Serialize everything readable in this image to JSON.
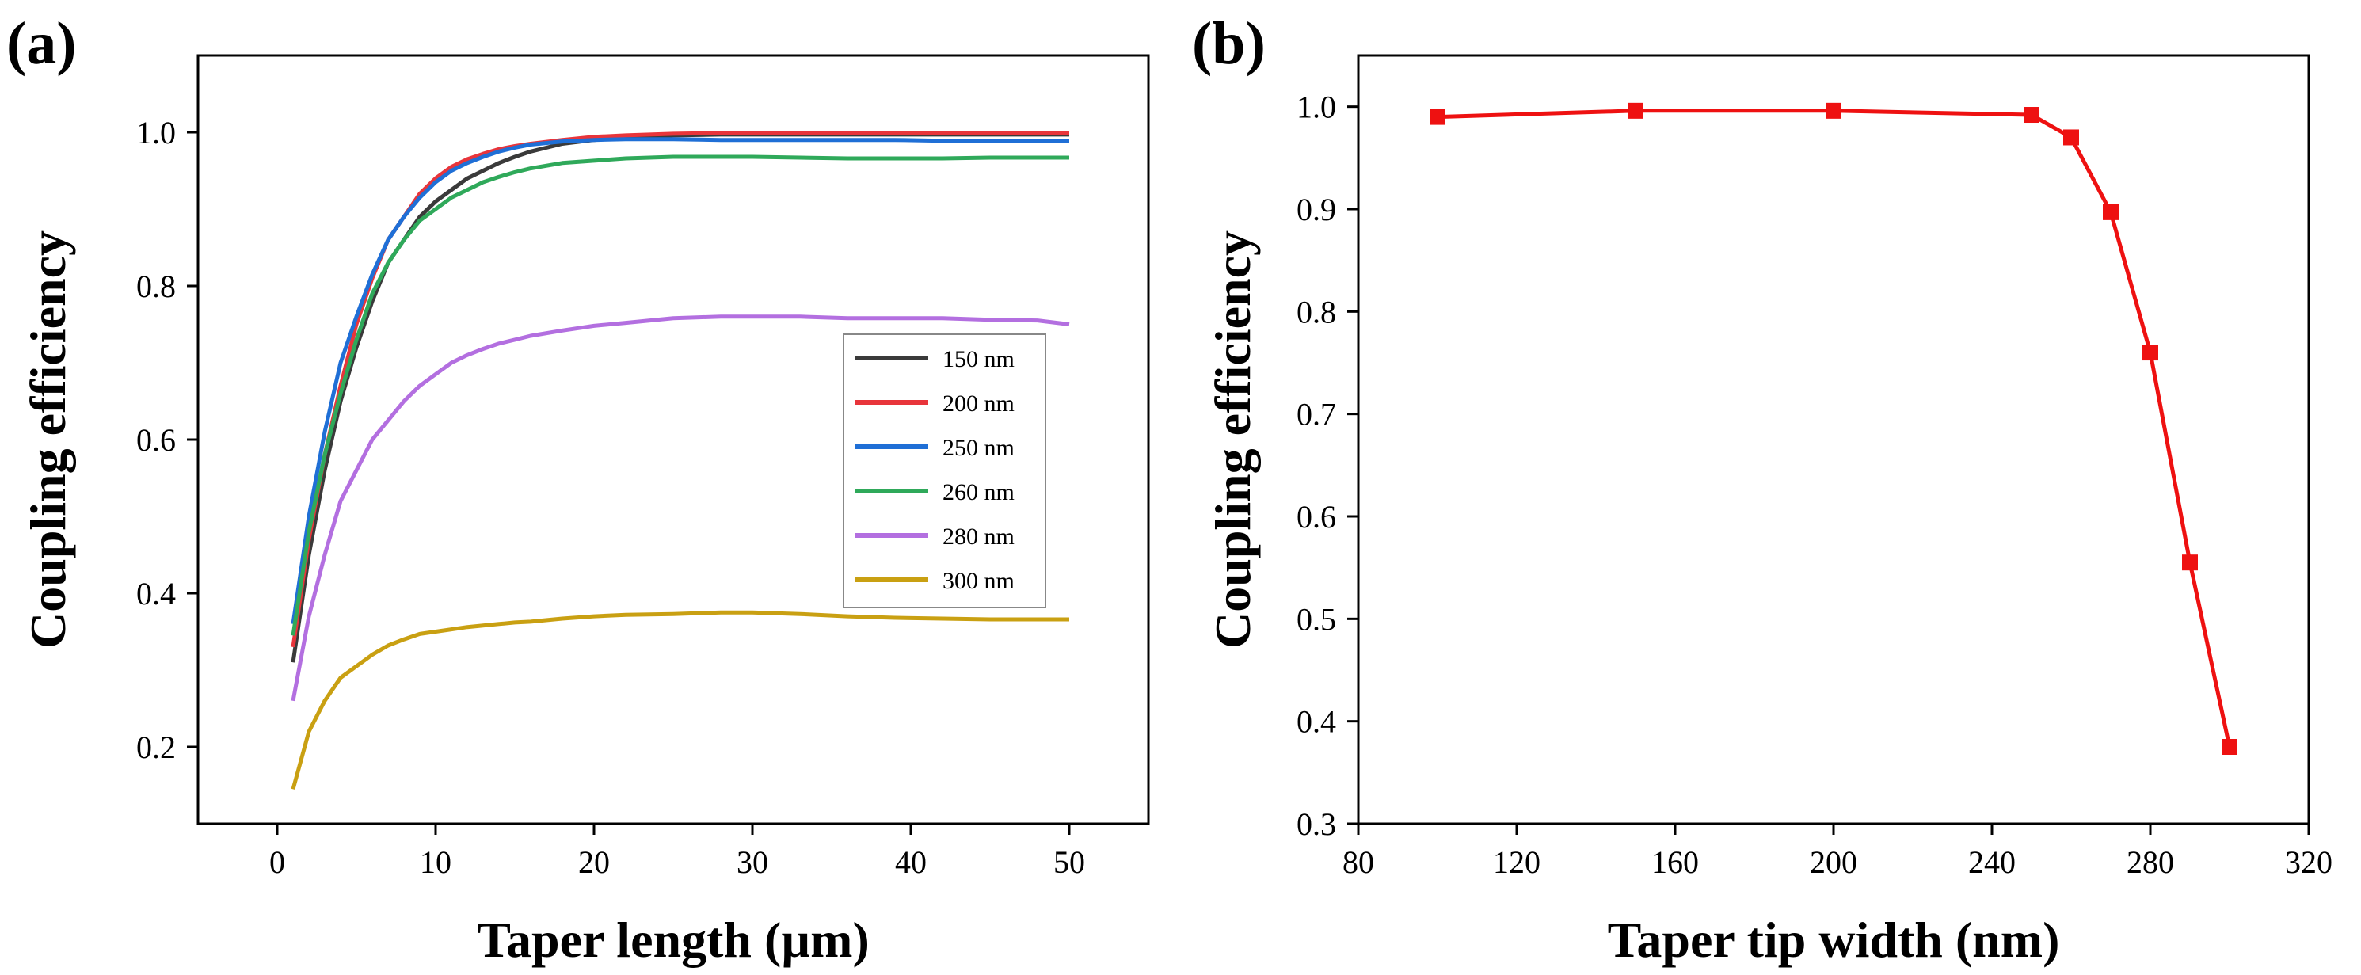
{
  "chart_data": [
    {
      "type": "line",
      "panel_label": "(a)",
      "xlabel": "Taper length (µm)",
      "ylabel": "Coupling efficiency",
      "xlim": [
        -5,
        55
      ],
      "ylim": [
        0.1,
        1.1
      ],
      "xticks": [
        0,
        10,
        20,
        30,
        40,
        50
      ],
      "yticks": [
        0.2,
        0.4,
        0.6,
        0.8,
        1.0
      ],
      "xticklabels": [
        "0",
        "10",
        "20",
        "30",
        "40",
        "50"
      ],
      "yticklabels": [
        "0.2",
        "0.4",
        "0.6",
        "0.8",
        "1.0"
      ],
      "legend_position": "right-middle",
      "x": [
        1,
        2,
        3,
        4,
        5,
        6,
        7,
        8,
        9,
        10,
        11,
        12,
        13,
        14,
        15,
        16,
        18,
        20,
        22,
        25,
        28,
        30,
        33,
        36,
        39,
        42,
        45,
        48,
        50
      ],
      "series": [
        {
          "name": "150 nm",
          "color": "#3a3a3a",
          "values": [
            0.31,
            0.45,
            0.56,
            0.65,
            0.72,
            0.78,
            0.83,
            0.86,
            0.89,
            0.91,
            0.925,
            0.94,
            0.95,
            0.96,
            0.968,
            0.975,
            0.985,
            0.99,
            0.993,
            0.996,
            0.997,
            0.997,
            0.997,
            0.997,
            0.997,
            0.997,
            0.997,
            0.997,
            0.997
          ]
        },
        {
          "name": "200 nm",
          "color": "#e8353b",
          "values": [
            0.33,
            0.47,
            0.58,
            0.67,
            0.75,
            0.81,
            0.86,
            0.89,
            0.92,
            0.94,
            0.955,
            0.965,
            0.972,
            0.978,
            0.982,
            0.985,
            0.99,
            0.994,
            0.996,
            0.998,
            0.999,
            0.999,
            0.999,
            0.999,
            0.999,
            0.999,
            0.999,
            0.999,
            0.999
          ]
        },
        {
          "name": "250 nm",
          "color": "#1f6fd6",
          "values": [
            0.36,
            0.5,
            0.61,
            0.7,
            0.76,
            0.815,
            0.86,
            0.89,
            0.915,
            0.935,
            0.95,
            0.96,
            0.968,
            0.975,
            0.98,
            0.984,
            0.988,
            0.99,
            0.991,
            0.991,
            0.99,
            0.99,
            0.99,
            0.99,
            0.99,
            0.989,
            0.989,
            0.989,
            0.989
          ]
        },
        {
          "name": "260 nm",
          "color": "#2fa95a",
          "values": [
            0.345,
            0.48,
            0.58,
            0.66,
            0.73,
            0.79,
            0.83,
            0.86,
            0.885,
            0.9,
            0.915,
            0.925,
            0.935,
            0.942,
            0.948,
            0.953,
            0.96,
            0.963,
            0.966,
            0.968,
            0.968,
            0.968,
            0.967,
            0.966,
            0.966,
            0.966,
            0.967,
            0.967,
            0.967
          ]
        },
        {
          "name": "280 nm",
          "color": "#b36fe0",
          "values": [
            0.26,
            0.37,
            0.45,
            0.52,
            0.56,
            0.6,
            0.625,
            0.65,
            0.67,
            0.685,
            0.7,
            0.71,
            0.718,
            0.725,
            0.73,
            0.735,
            0.742,
            0.748,
            0.752,
            0.758,
            0.76,
            0.76,
            0.76,
            0.758,
            0.758,
            0.758,
            0.756,
            0.755,
            0.75
          ]
        },
        {
          "name": "300 nm",
          "color": "#c9a012",
          "values": [
            0.145,
            0.22,
            0.26,
            0.29,
            0.305,
            0.32,
            0.332,
            0.34,
            0.347,
            0.35,
            0.353,
            0.356,
            0.358,
            0.36,
            0.362,
            0.363,
            0.367,
            0.37,
            0.372,
            0.373,
            0.375,
            0.375,
            0.373,
            0.37,
            0.368,
            0.367,
            0.366,
            0.366,
            0.366
          ]
        }
      ]
    },
    {
      "type": "line",
      "panel_label": "(b)",
      "xlabel": "Taper tip width (nm)",
      "ylabel": "Coupling efficiency",
      "xlim": [
        80,
        320
      ],
      "ylim": [
        0.3,
        1.05
      ],
      "xticks": [
        80,
        120,
        160,
        200,
        240,
        280,
        320
      ],
      "yticks": [
        0.3,
        0.4,
        0.5,
        0.6,
        0.7,
        0.8,
        0.9,
        1.0
      ],
      "xticklabels": [
        "80",
        "120",
        "160",
        "200",
        "240",
        "280",
        "320"
      ],
      "yticklabels": [
        "0.3",
        "0.4",
        "0.5",
        "0.6",
        "0.7",
        "0.8",
        "0.9",
        "1.0"
      ],
      "series": [
        {
          "name": "Coupling efficiency",
          "color": "#ee1111",
          "marker": "square",
          "x": [
            100,
            150,
            200,
            250,
            260,
            270,
            280,
            290,
            300
          ],
          "values": [
            0.99,
            0.996,
            0.996,
            0.992,
            0.97,
            0.897,
            0.76,
            0.555,
            0.375
          ]
        }
      ]
    }
  ]
}
